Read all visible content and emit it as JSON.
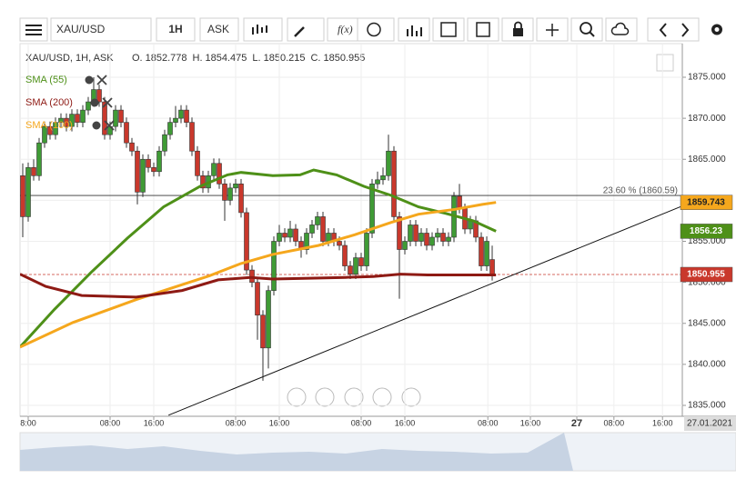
{
  "toolbar": {
    "symbol": "XAU/USD",
    "interval": "1H",
    "side": "ASK",
    "fx": "f(x)"
  },
  "chart_data": {
    "type": "candlestick",
    "header": "XAU/USD, 1H, ASK",
    "ohlc_labels": [
      "O.",
      "H.",
      "L.",
      "C."
    ],
    "ohlc": [
      [
        1863,
        1864.5,
        1855.5,
        1858
      ],
      [
        1858,
        1864.6,
        1857.4,
        1864
      ],
      [
        1864,
        1865,
        1862.4,
        1863
      ],
      [
        1863,
        1867.6,
        1862.4,
        1867
      ],
      [
        1867,
        1869.6,
        1866.4,
        1869
      ],
      [
        1869,
        1869.6,
        1867.4,
        1868
      ],
      [
        1868,
        1870.1,
        1867.4,
        1869.5
      ],
      [
        1869.5,
        1870.6,
        1868.9,
        1870
      ],
      [
        1870,
        1870.6,
        1868.4,
        1869
      ],
      [
        1869,
        1871.1,
        1868.4,
        1870.5
      ],
      [
        1870.5,
        1871.1,
        1868.9,
        1869.5
      ],
      [
        1869.5,
        1871.6,
        1868.9,
        1871
      ],
      [
        1871,
        1872.6,
        1870.4,
        1872
      ],
      [
        1872,
        1875,
        1871.4,
        1873.5
      ],
      [
        1873.5,
        1874.1,
        1871.4,
        1872
      ],
      [
        1872,
        1872.6,
        1867.4,
        1868
      ],
      [
        1868,
        1869.6,
        1867.4,
        1869
      ],
      [
        1869,
        1871.6,
        1868.4,
        1871
      ],
      [
        1871,
        1871.6,
        1868.9,
        1869.5
      ],
      [
        1869.5,
        1870.1,
        1866.4,
        1867
      ],
      [
        1867,
        1867.6,
        1865.4,
        1866
      ],
      [
        1866,
        1866.6,
        1859.5,
        1861
      ],
      [
        1861,
        1865.6,
        1860.4,
        1865
      ],
      [
        1865,
        1865.6,
        1863.4,
        1864
      ],
      [
        1864,
        1864.6,
        1862.9,
        1863.5
      ],
      [
        1863.5,
        1866.6,
        1862.9,
        1866
      ],
      [
        1866,
        1868.6,
        1865.4,
        1868
      ],
      [
        1868,
        1870.1,
        1867.4,
        1869.5
      ],
      [
        1869.5,
        1871.5,
        1868.9,
        1870
      ],
      [
        1870,
        1871.6,
        1869.4,
        1871
      ],
      [
        1871,
        1871.6,
        1868.9,
        1869.5
      ],
      [
        1869.5,
        1870.1,
        1865.4,
        1866
      ],
      [
        1866,
        1866.6,
        1862.4,
        1863
      ],
      [
        1863,
        1863.6,
        1860.9,
        1861.5
      ],
      [
        1861.5,
        1863.6,
        1860.9,
        1863
      ],
      [
        1863,
        1865.1,
        1862.4,
        1864.5
      ],
      [
        1864.5,
        1865.1,
        1861.4,
        1862
      ],
      [
        1862,
        1862.6,
        1857.5,
        1860
      ],
      [
        1860,
        1862.1,
        1859.4,
        1861.5
      ],
      [
        1861.5,
        1862.6,
        1860.9,
        1862
      ],
      [
        1862,
        1862.6,
        1857.9,
        1858.5
      ],
      [
        1858.5,
        1859.1,
        1850.9,
        1851.5
      ],
      [
        1851.5,
        1852.1,
        1849.4,
        1850
      ],
      [
        1850,
        1850.6,
        1843,
        1846
      ],
      [
        1846,
        1846.6,
        1838,
        1842
      ],
      [
        1842,
        1849.6,
        1839.5,
        1849
      ],
      [
        1849,
        1855.6,
        1848.4,
        1855
      ],
      [
        1855,
        1857,
        1854.4,
        1856
      ],
      [
        1856,
        1856.6,
        1854.9,
        1855.5
      ],
      [
        1855.5,
        1857.5,
        1854.9,
        1856.5
      ],
      [
        1856.5,
        1857.1,
        1854.4,
        1855
      ],
      [
        1855,
        1855.6,
        1853,
        1854
      ],
      [
        1854,
        1856.6,
        1853.4,
        1856
      ],
      [
        1856,
        1857.6,
        1855.4,
        1857
      ],
      [
        1857,
        1858.6,
        1856.4,
        1858
      ],
      [
        1858,
        1858.6,
        1854.4,
        1855
      ],
      [
        1855,
        1856.6,
        1854.4,
        1856
      ],
      [
        1856,
        1856.6,
        1854.4,
        1855
      ],
      [
        1855,
        1855.6,
        1853.9,
        1854.5
      ],
      [
        1854.5,
        1855.1,
        1851.4,
        1852
      ],
      [
        1852,
        1852.6,
        1850.4,
        1851
      ],
      [
        1851,
        1853.6,
        1850.4,
        1853
      ],
      [
        1853,
        1853.6,
        1851.4,
        1852
      ],
      [
        1852,
        1856.6,
        1851.4,
        1856
      ],
      [
        1856,
        1862.6,
        1855.4,
        1862
      ],
      [
        1862,
        1863.5,
        1861.4,
        1862.5
      ],
      [
        1862.5,
        1864,
        1861.9,
        1863
      ],
      [
        1863,
        1868,
        1862.4,
        1866
      ],
      [
        1866,
        1866.6,
        1857.4,
        1858
      ],
      [
        1858,
        1858.6,
        1848,
        1854
      ],
      [
        1854,
        1855.6,
        1853.4,
        1855
      ],
      [
        1855,
        1857.6,
        1854.4,
        1857
      ],
      [
        1857,
        1857.6,
        1854.4,
        1855
      ],
      [
        1855,
        1856.6,
        1854.4,
        1856
      ],
      [
        1856,
        1856.6,
        1853.9,
        1854.5
      ],
      [
        1854.5,
        1856.1,
        1853.9,
        1855.5
      ],
      [
        1855.5,
        1856.6,
        1854.9,
        1856
      ],
      [
        1856,
        1856.6,
        1854.4,
        1855
      ],
      [
        1855,
        1856.1,
        1854.4,
        1855.5
      ],
      [
        1855.5,
        1861,
        1854.9,
        1860.5
      ],
      [
        1860.5,
        1862,
        1858.4,
        1859
      ],
      [
        1859,
        1859.6,
        1855.9,
        1856.5
      ],
      [
        1856.5,
        1858.1,
        1855.9,
        1857.5
      ],
      [
        1857.5,
        1858.1,
        1854.9,
        1855.5
      ],
      [
        1855.5,
        1856.1,
        1851.4,
        1852
      ],
      [
        1852,
        1855.6,
        1851.4,
        1855
      ],
      [
        1852.778,
        1854.475,
        1850.215,
        1850.955
      ]
    ],
    "up_color": "#3f9b35",
    "down_color": "#c9382c",
    "series": [
      {
        "name": "SMA (55)",
        "color": "#4e9018",
        "x": [
          -0.5,
          5.8,
          12.5,
          19.2,
          25.8,
          32.5,
          37.5,
          40,
          45.8,
          50.8,
          53.3,
          57.5,
          62.5,
          67.5,
          72.5,
          77.5,
          82.5,
          86.7
        ],
        "values": [
          1842.1,
          1846.7,
          1851.2,
          1855.4,
          1859.2,
          1861.7,
          1863.1,
          1863.4,
          1863,
          1863.1,
          1863.7,
          1863.1,
          1861.7,
          1860.6,
          1859.2,
          1858.4,
          1857.5,
          1856.23
        ]
      },
      {
        "name": "SMA (100)",
        "color": "#f5a71d",
        "x": [
          -0.5,
          9.2,
          20.8,
          34.2,
          40,
          45.8,
          54.2,
          60.8,
          67.5,
          72.5,
          79.2,
          84.2,
          86.7
        ],
        "values": [
          1842.1,
          1845.1,
          1847.9,
          1850.8,
          1852.3,
          1853.4,
          1854.5,
          1855.8,
          1857.3,
          1858.3,
          1858.9,
          1859.5,
          1859.743
        ]
      },
      {
        "name": "SMA (200)",
        "color": "#8e1a14",
        "x": [
          -0.5,
          4.2,
          10.8,
          20.8,
          29.2,
          35.8,
          41.7,
          45.8,
          52.5,
          59.2,
          64.2,
          69.2,
          74.2,
          79.2,
          86.7
        ],
        "values": [
          1851,
          1849.5,
          1848.4,
          1848.2,
          1849,
          1850.3,
          1850.6,
          1850.4,
          1850.5,
          1850.6,
          1850.7,
          1851,
          1850.9,
          1850.9,
          1850.9
        ]
      }
    ],
    "trendline": {
      "x": [
        26.7,
        120.8
      ],
      "values": [
        1833.8,
        1859.3
      ]
    },
    "fib": {
      "label": "23.60 % (1860.59)",
      "value": 1860.59
    },
    "xlim": [
      -0.5,
      120.83
    ],
    "ylim": [
      1833.67,
      1879.1
    ],
    "yticks": [
      {
        "value": 1835,
        "label": "1835.000"
      },
      {
        "value": 1840,
        "label": "1840.000"
      },
      {
        "value": 1845,
        "label": "1845.000"
      },
      {
        "value": 1850,
        "label": "1850.000"
      },
      {
        "value": 1855,
        "label": "1855.000"
      },
      {
        "value": 1860,
        "label": "1860.000"
      },
      {
        "value": 1865,
        "label": "1865.000"
      },
      {
        "value": 1870,
        "label": "1870.000"
      },
      {
        "value": 1875,
        "label": "1875.000"
      }
    ],
    "xticks": [
      {
        "value": 1,
        "label": "8:00"
      },
      {
        "value": 16,
        "label": "08:00"
      },
      {
        "value": 24,
        "label": "16:00"
      },
      {
        "value": 39,
        "label": "08:00"
      },
      {
        "value": 47,
        "label": "16:00"
      },
      {
        "value": 62,
        "label": "08:00"
      },
      {
        "value": 70,
        "label": "16:00"
      },
      {
        "value": 85.2,
        "label": "08:00"
      },
      {
        "value": 93,
        "label": "16:00"
      },
      {
        "value": 101.5,
        "label": "27"
      },
      {
        "value": 108.3,
        "label": "08:00"
      },
      {
        "value": 117.2,
        "label": "16:00"
      }
    ],
    "cursor_date": "27.01.2021",
    "grid": true
  }
}
